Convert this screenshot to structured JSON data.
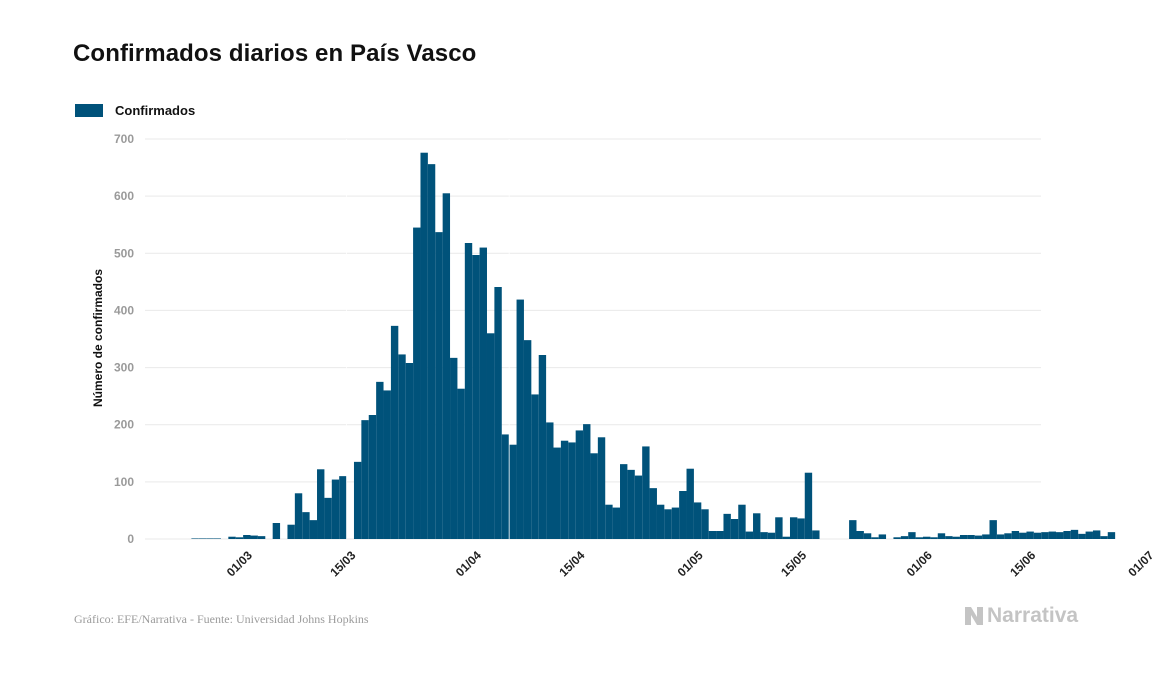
{
  "header": {
    "title": "Confirmados diarios en País Vasco"
  },
  "legend": {
    "label": "Confirmados",
    "color": "#00527a"
  },
  "footer": {
    "source": "Gráfico: EFE/Narrativa - Fuente: Universidad Johns Hopkins",
    "brand": "Narrativa",
    "brand_icon": "narrativa-logo-icon"
  },
  "chart_data": {
    "type": "bar",
    "title": "Confirmados diarios en País Vasco",
    "ylabel": "Número de confirmados",
    "xlabel": "",
    "ylim": [
      0,
      700
    ],
    "yticks": [
      0,
      100,
      200,
      300,
      400,
      500,
      600,
      700
    ],
    "grid": true,
    "legend_position": "top-left",
    "color": "#00527a",
    "x_start": "2020-02-22",
    "xticks": [
      {
        "label": "01/03",
        "date": "2020-03-01"
      },
      {
        "label": "15/03",
        "date": "2020-03-15"
      },
      {
        "label": "01/04",
        "date": "2020-04-01"
      },
      {
        "label": "15/04",
        "date": "2020-04-15"
      },
      {
        "label": "01/05",
        "date": "2020-05-01"
      },
      {
        "label": "15/05",
        "date": "2020-05-15"
      },
      {
        "label": "01/06",
        "date": "2020-06-01"
      },
      {
        "label": "15/06",
        "date": "2020-06-15"
      },
      {
        "label": "01/07",
        "date": "2020-07-01"
      }
    ],
    "series": [
      {
        "name": "Confirmados",
        "values": [
          0,
          1,
          1,
          1,
          1,
          0,
          4,
          3,
          7,
          6,
          5,
          0,
          28,
          0,
          25,
          80,
          47,
          33,
          122,
          72,
          104,
          110,
          0,
          135,
          208,
          217,
          275,
          260,
          373,
          323,
          308,
          545,
          676,
          656,
          537,
          605,
          317,
          263,
          518,
          497,
          510,
          360,
          441,
          183,
          165,
          419,
          348,
          253,
          322,
          204,
          160,
          172,
          169,
          190,
          201,
          150,
          178,
          60,
          55,
          131,
          121,
          111,
          162,
          89,
          60,
          52,
          55,
          84,
          123,
          64,
          52,
          14,
          14,
          44,
          35,
          60,
          13,
          45,
          12,
          11,
          38,
          4,
          38,
          36,
          116,
          15,
          0,
          0,
          0,
          0,
          33,
          14,
          10,
          3,
          8,
          0,
          3,
          5,
          12,
          3,
          4,
          3,
          10,
          5,
          4,
          7,
          7,
          6,
          8,
          33,
          8,
          10,
          14,
          11,
          13,
          11,
          12,
          13,
          12,
          14,
          16,
          9,
          13,
          15,
          5,
          12
        ]
      }
    ]
  }
}
